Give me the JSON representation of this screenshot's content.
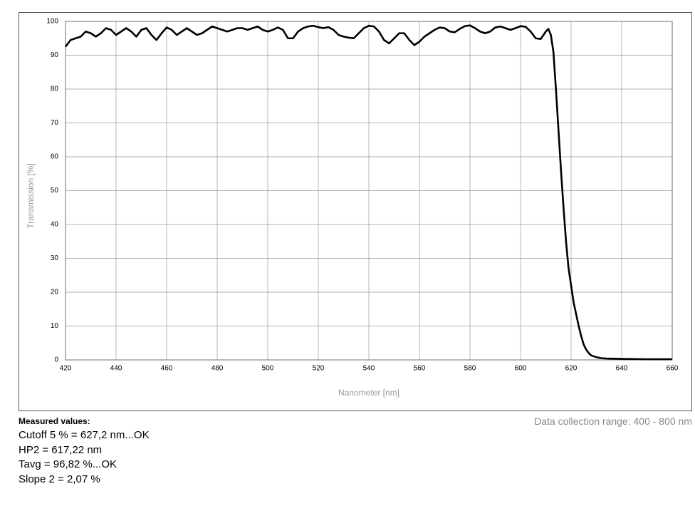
{
  "chart_data": {
    "type": "line",
    "xlabel": "Nanometer [nm]",
    "ylabel": "Transmission [%]",
    "x": [
      420,
      422,
      424,
      426,
      428,
      430,
      432,
      434,
      436,
      438,
      440,
      442,
      444,
      446,
      448,
      450,
      452,
      454,
      456,
      458,
      460,
      462,
      464,
      466,
      468,
      470,
      472,
      474,
      476,
      478,
      480,
      482,
      484,
      486,
      488,
      490,
      492,
      494,
      496,
      498,
      500,
      502,
      504,
      506,
      508,
      510,
      512,
      514,
      516,
      518,
      520,
      522,
      524,
      526,
      528,
      530,
      532,
      534,
      536,
      538,
      540,
      542,
      544,
      546,
      548,
      550,
      552,
      554,
      556,
      558,
      560,
      562,
      564,
      566,
      568,
      570,
      572,
      574,
      576,
      578,
      580,
      582,
      584,
      586,
      588,
      590,
      592,
      594,
      596,
      598,
      600,
      602,
      604,
      606,
      608,
      610,
      611,
      612,
      613,
      614,
      615,
      616,
      617,
      618,
      619,
      620,
      621,
      622,
      623,
      624,
      625,
      626,
      627,
      628,
      630,
      632,
      634,
      640,
      650,
      660
    ],
    "series": [
      {
        "name": "Transmission",
        "color": "#000000",
        "values": [
          92.5,
          94.5,
          95,
          95.5,
          97,
          96.5,
          95.5,
          96.5,
          98,
          97.5,
          96,
          97,
          98,
          97,
          95.5,
          97.5,
          98,
          96,
          94.5,
          96.5,
          98.2,
          97.5,
          96,
          97,
          98,
          97,
          96,
          96.5,
          97.5,
          98.5,
          98,
          97.5,
          97,
          97.5,
          98,
          98,
          97.5,
          98,
          98.5,
          97.5,
          97,
          97.5,
          98.2,
          97.5,
          95,
          95,
          97,
          98,
          98.5,
          98.7,
          98.3,
          98,
          98.3,
          97.5,
          96,
          95.5,
          95.2,
          95,
          96.5,
          98,
          98.7,
          98.5,
          97,
          94.5,
          93.5,
          95,
          96.5,
          96.5,
          94.5,
          93,
          94,
          95.5,
          96.5,
          97.5,
          98.2,
          98,
          97,
          96.8,
          97.8,
          98.6,
          98.8,
          98,
          97,
          96.5,
          97,
          98.2,
          98.5,
          98,
          97.5,
          98,
          98.6,
          98.4,
          97,
          95,
          94.8,
          97,
          97.8,
          96,
          91,
          80,
          68,
          56,
          45,
          35,
          27,
          22,
          17,
          13.5,
          10,
          7,
          4.5,
          3,
          2,
          1.3,
          0.8,
          0.5,
          0.4,
          0.3,
          0.2,
          0.2
        ]
      }
    ],
    "xlim": [
      420,
      660
    ],
    "xticks": [
      420,
      440,
      460,
      480,
      500,
      520,
      540,
      560,
      580,
      600,
      620,
      640,
      660
    ],
    "ylim": [
      0,
      100
    ],
    "yticks": [
      0,
      10,
      20,
      30,
      40,
      50,
      60,
      70,
      80,
      90,
      100
    ],
    "grid": true
  },
  "footer": {
    "heading": "Measured values:",
    "lines": [
      "Cutoff 5 % = 627,2 nm...OK",
      "HP2 = 617,22 nm",
      "Tavg = 96,82 %...OK",
      "Slope 2 = 2,07 %"
    ],
    "range": "Data collection range: 400 - 800 nm"
  }
}
